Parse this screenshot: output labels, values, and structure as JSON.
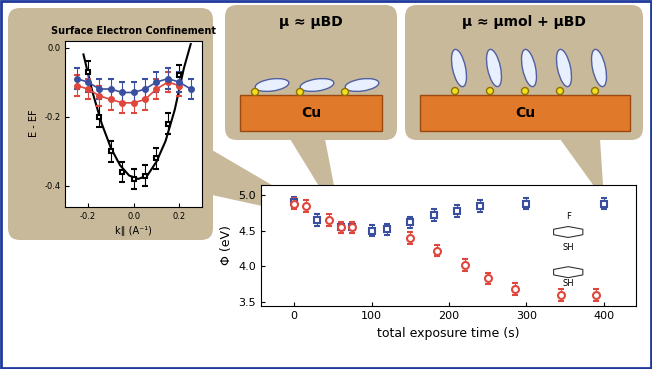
{
  "chart_data": [
    {
      "type": "scatter",
      "x_label": "total exposure time (s)",
      "y_label": "Φ (eV)",
      "xlim": [
        -43,
        441
      ],
      "ylim": [
        3.44,
        5.15
      ],
      "xticks": [
        0,
        100,
        200,
        300,
        400
      ],
      "yticks": [
        3.5,
        4.0,
        4.5,
        5.0
      ],
      "annotations": [
        "F",
        "SH",
        "SH"
      ],
      "series": [
        {
          "color": "#3a4fa0",
          "marker": "s",
          "line_style": "none",
          "x": [
            0,
            30,
            60,
            75,
            100,
            120,
            150,
            180,
            210,
            240,
            300,
            400
          ],
          "values": [
            4.9,
            4.65,
            4.55,
            4.55,
            4.5,
            4.52,
            4.62,
            4.72,
            4.78,
            4.85,
            4.88,
            4.88
          ],
          "errors": [
            0.08,
            0.08,
            0.08,
            0.08,
            0.08,
            0.08,
            0.08,
            0.08,
            0.08,
            0.08,
            0.08,
            0.08
          ]
        },
        {
          "color": "#e0463c",
          "marker": "o",
          "line_style": "none",
          "x": [
            0,
            15,
            45,
            60,
            75,
            150,
            185,
            220,
            250,
            285,
            345,
            390
          ],
          "values": [
            4.88,
            4.85,
            4.65,
            4.55,
            4.55,
            4.4,
            4.22,
            4.02,
            3.83,
            3.68,
            3.6,
            3.6
          ],
          "errors": [
            0.08,
            0.08,
            0.08,
            0.08,
            0.08,
            0.08,
            0.08,
            0.08,
            0.08,
            0.08,
            0.08,
            0.08
          ]
        }
      ]
    },
    {
      "type": "line",
      "title": "Surface Electron Confinement",
      "x_label": "k∥ (A⁻¹)",
      "y_label": "E - EF",
      "xlim": [
        -0.3,
        0.3
      ],
      "ylim": [
        -0.46,
        0.02
      ],
      "xticks": [
        -0.2,
        0.0,
        0.2
      ],
      "yticks": [
        -0.4,
        -0.2,
        0.0
      ],
      "series": [
        {
          "type": "line",
          "color": "#000000",
          "line_style": "solid",
          "x": [
            -0.22,
            -0.18,
            -0.14,
            -0.1,
            -0.06,
            -0.02,
            0.02,
            0.06,
            0.1,
            0.14,
            0.18,
            0.22,
            0.25
          ],
          "values": [
            -0.02,
            -0.13,
            -0.22,
            -0.29,
            -0.34,
            -0.37,
            -0.38,
            -0.37,
            -0.33,
            -0.27,
            -0.18,
            -0.06,
            0.01
          ]
        },
        {
          "type": "scatter",
          "color": "#000000",
          "marker": "s",
          "line_style": "none",
          "x": [
            -0.2,
            -0.15,
            -0.1,
            -0.05,
            0.0,
            0.05,
            0.1,
            0.15,
            0.2
          ],
          "values": [
            -0.07,
            -0.2,
            -0.3,
            -0.36,
            -0.38,
            -0.37,
            -0.32,
            -0.22,
            -0.08
          ],
          "errors": [
            0.03,
            0.03,
            0.03,
            0.03,
            0.03,
            0.03,
            0.03,
            0.03,
            0.03
          ]
        },
        {
          "type": "line",
          "color": "#e0463c",
          "marker": "o",
          "line_style": "solid",
          "x": [
            -0.25,
            -0.2,
            -0.15,
            -0.1,
            -0.05,
            0.0,
            0.05,
            0.1,
            0.15,
            0.2
          ],
          "values": [
            -0.11,
            -0.12,
            -0.14,
            -0.15,
            -0.16,
            -0.16,
            -0.15,
            -0.12,
            -0.1,
            -0.11
          ],
          "errors": [
            0.03,
            0.03,
            0.03,
            0.03,
            0.03,
            0.03,
            0.03,
            0.03,
            0.03,
            0.03
          ]
        },
        {
          "type": "line",
          "color": "#3a4fa0",
          "marker": "o",
          "line_style": "solid",
          "x": [
            -0.25,
            -0.2,
            -0.15,
            -0.1,
            -0.05,
            0.0,
            0.05,
            0.1,
            0.15,
            0.2,
            0.25
          ],
          "values": [
            -0.09,
            -0.1,
            -0.12,
            -0.12,
            -0.13,
            -0.13,
            -0.12,
            -0.1,
            -0.09,
            -0.1,
            -0.12
          ],
          "errors": [
            0.03,
            0.03,
            0.03,
            0.03,
            0.03,
            0.03,
            0.03,
            0.03,
            0.03,
            0.03,
            0.03
          ]
        }
      ]
    }
  ],
  "diagram": {
    "panels": [
      {
        "title": "μ ≈ μBD",
        "substrate": "Cu"
      },
      {
        "title": "μ ≈ μmol + μBD",
        "substrate": "Cu"
      }
    ]
  }
}
